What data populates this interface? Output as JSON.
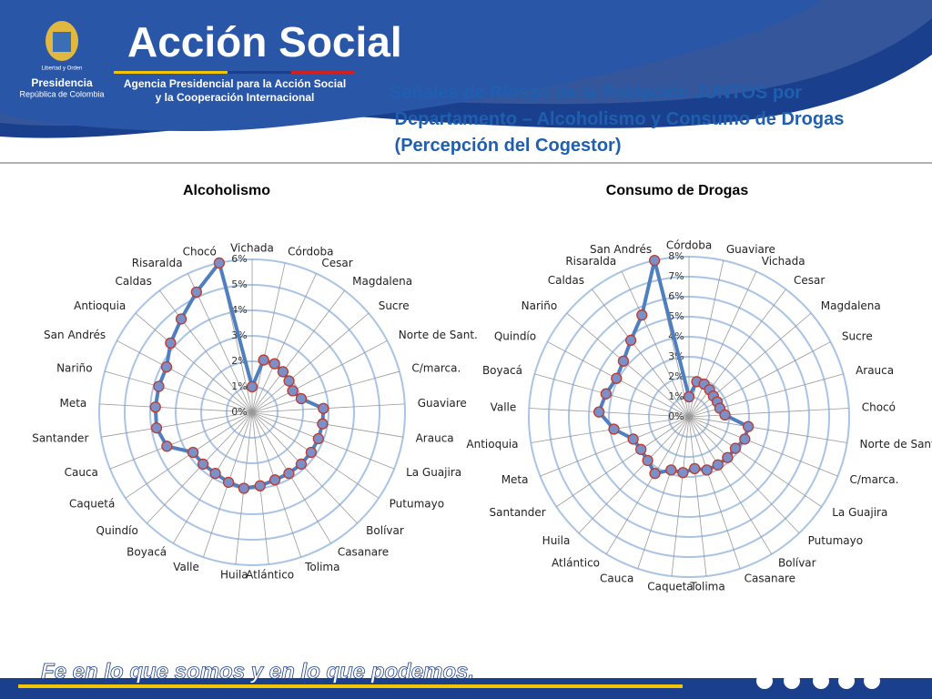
{
  "header": {
    "logo_motto": "Libertad y Orden",
    "presidencia": "Presidencia",
    "republica": "República de Colombia",
    "brand": "Acción Social",
    "agency_line1": "Agencia Presidencial para la Acción Social",
    "agency_line2": "y la Cooperación Internacional",
    "title": "Señales de Riesgo de la Población JUNTOS por Departamento – Alcoholismo y Consumo de Drogas (Percepción del Cogestor)"
  },
  "footer": {
    "slogan": "Fe en lo que somos y en lo que podemos."
  },
  "chart_data": [
    {
      "type": "radar",
      "title": "Alcoholismo",
      "color": "#4f7fbf",
      "marker_color": "#7b8fc9",
      "marker_edge": "#c0392b",
      "categories": [
        "Vichada",
        "Córdoba",
        "Cesar",
        "Magdalena",
        "Sucre",
        "Norte de Sant.",
        "C/marca.",
        "Guaviare",
        "Arauca",
        "La Guajira",
        "Putumayo",
        "Bolívar",
        "Casanare",
        "Tolima",
        "Atlántico",
        "Huila",
        "Valle",
        "Boyacá",
        "Quindío",
        "Caquetá",
        "Cauca",
        "Santander",
        "Meta",
        "Nariño",
        "San Andrés",
        "Antioquia",
        "Caldas",
        "Risaralda",
        "Chocó"
      ],
      "values": [
        1.0,
        2.1,
        2.1,
        2.0,
        1.9,
        1.8,
        2.0,
        2.8,
        2.8,
        2.8,
        2.8,
        2.8,
        2.8,
        2.8,
        2.9,
        3.0,
        2.9,
        2.8,
        2.8,
        2.8,
        3.6,
        3.8,
        3.8,
        3.8,
        3.8,
        4.2,
        4.6,
        5.2,
        6.0
      ],
      "ylim": [
        0,
        6
      ],
      "yticks": [
        {
          "value": 0,
          "label": "0%"
        },
        {
          "value": 1,
          "label": "1%"
        },
        {
          "value": 2,
          "label": "2%"
        },
        {
          "value": 3,
          "label": "3%"
        },
        {
          "value": 4,
          "label": "4%"
        },
        {
          "value": 5,
          "label": "5%"
        },
        {
          "value": 6,
          "label": "6%"
        }
      ],
      "grid": true
    },
    {
      "type": "radar",
      "title": "Consumo  de Drogas",
      "color": "#4f7fbf",
      "marker_color": "#7b8fc9",
      "marker_edge": "#c0392b",
      "categories": [
        "Córdoba",
        "Guaviare",
        "Vichada",
        "Cesar",
        "Magdalena",
        "Sucre",
        "Arauca",
        "Chocó",
        "Norte de Sant.",
        "C/marca.",
        "La Guajira",
        "Putumayo",
        "Bolívar",
        "Casanare",
        "Tolima",
        "Caqueta",
        "Cauca",
        "Atlántico",
        "Huila",
        "Santander",
        "Meta",
        "Antioquia",
        "Valle",
        "Boyacá",
        "Quindío",
        "Nariño",
        "Caldas",
        "Risaralda",
        "San Andrés"
      ],
      "values": [
        1.0,
        1.8,
        1.8,
        1.7,
        1.6,
        1.6,
        1.6,
        1.8,
        3.0,
        3.0,
        2.8,
        2.8,
        2.8,
        2.8,
        2.6,
        2.8,
        2.8,
        3.3,
        3.0,
        2.9,
        3.0,
        3.8,
        4.5,
        4.3,
        4.1,
        4.3,
        4.8,
        5.6,
        8.0
      ],
      "ylim": [
        0,
        8
      ],
      "yticks": [
        {
          "value": 0,
          "label": "0%"
        },
        {
          "value": 1,
          "label": "1%"
        },
        {
          "value": 2,
          "label": "2%"
        },
        {
          "value": 3,
          "label": "3%"
        },
        {
          "value": 4,
          "label": "4%"
        },
        {
          "value": 5,
          "label": "5%"
        },
        {
          "value": 6,
          "label": "6%"
        },
        {
          "value": 7,
          "label": "7%"
        },
        {
          "value": 8,
          "label": "8%"
        }
      ],
      "grid": true
    }
  ]
}
